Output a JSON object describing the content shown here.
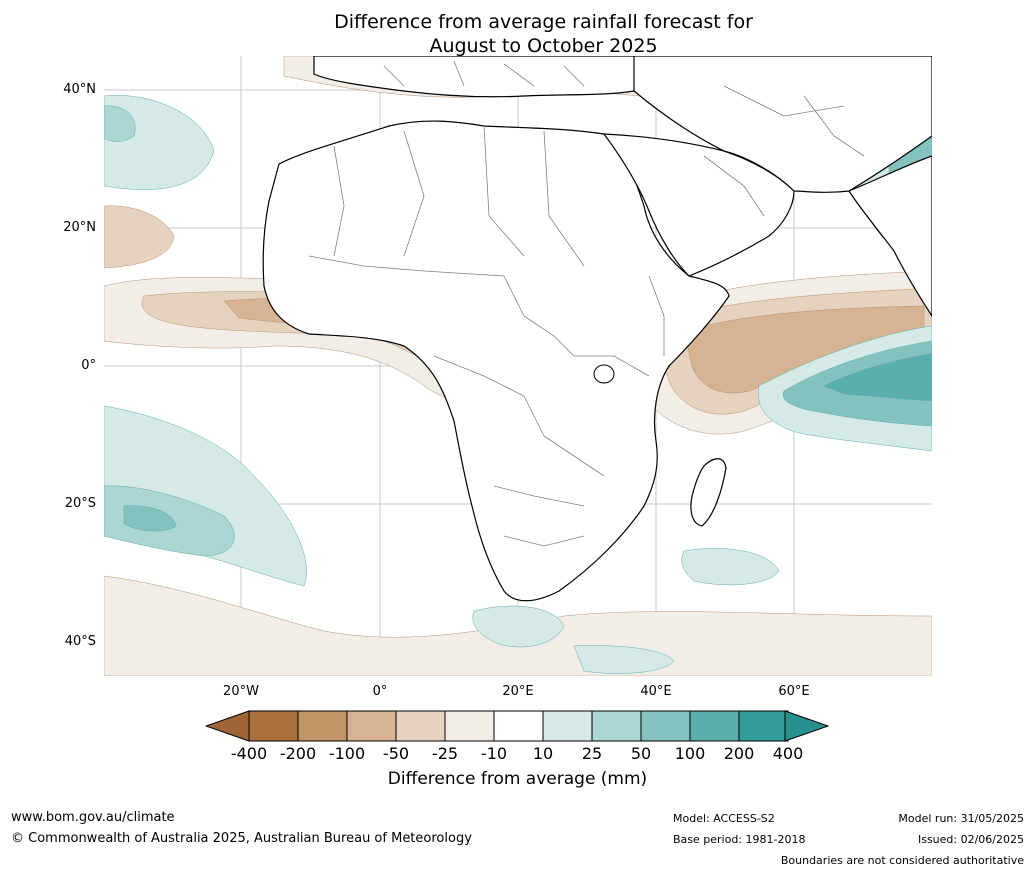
{
  "title_line1": "Difference from average rainfall forecast for",
  "title_line2": "August to October 2025",
  "lat_labels": [
    "40°N",
    "20°N",
    "0°",
    "20°S",
    "40°S"
  ],
  "lon_labels": [
    "20°W",
    "0°",
    "20°E",
    "40°E",
    "60°E"
  ],
  "colorbar": {
    "ticks": [
      "-400",
      "-200",
      "-100",
      "-50",
      "-25",
      "-10",
      "10",
      "25",
      "50",
      "100",
      "200",
      "400"
    ],
    "colors": [
      "#a8703a",
      "#c29467",
      "#d5b393",
      "#e5d2bf",
      "#f2ede6",
      "#ffffff",
      "#d5e9e7",
      "#acd6d3",
      "#84c2c0",
      "#5aaeab",
      "#319c98"
    ],
    "low_extend_color": "#9e6535",
    "high_extend_color": "#28918d",
    "title": "Difference from average (mm)"
  },
  "footer": {
    "website": "www.bom.gov.au/climate",
    "copyright": "© Commonwealth of Australia 2025, Australian Bureau of Meteorology",
    "model": "Model: ACCESS-S2",
    "base_period": "Base period: 1981-2018",
    "model_run": "Model run: 31/05/2025",
    "issued": "Issued: 02/06/2025",
    "disclaimer": "Boundaries are not considered authoritative"
  }
}
